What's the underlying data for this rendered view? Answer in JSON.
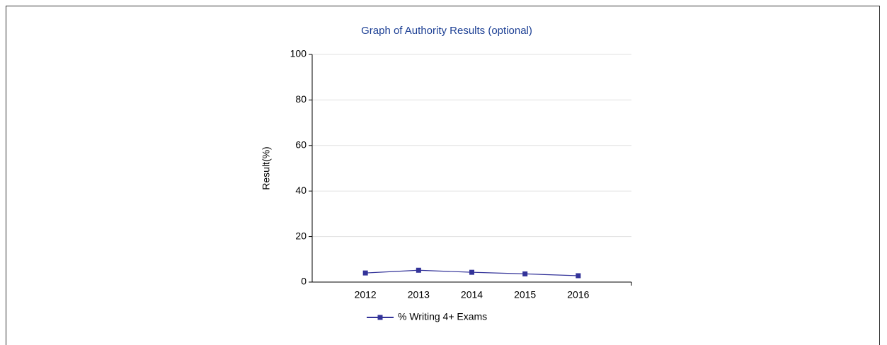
{
  "chart_data": {
    "type": "line",
    "title": "Graph of Authority Results (optional)",
    "y_label": "Result(%)",
    "categories": [
      "2012",
      "2013",
      "2014",
      "2015",
      "2016"
    ],
    "series": [
      {
        "name": "% Writing 4+ Exams",
        "color": "#333399",
        "values": [
          4,
          5.2,
          4.3,
          3.6,
          2.8
        ]
      }
    ],
    "ylim": [
      0,
      100
    ],
    "yticks": [
      0,
      20,
      40,
      60,
      80,
      100
    ],
    "grid": true,
    "legend": "bottom"
  }
}
